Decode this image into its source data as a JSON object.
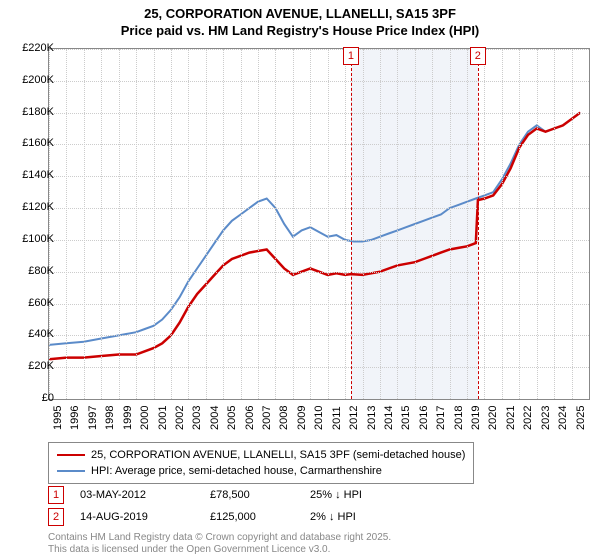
{
  "title_line1": "25, CORPORATION AVENUE, LLANELLI, SA15 3PF",
  "title_line2": "Price paid vs. HM Land Registry's House Price Index (HPI)",
  "chart": {
    "type": "line",
    "ylim": [
      0,
      220000
    ],
    "ytick_step": 20000,
    "yticks": [
      "£0",
      "£20K",
      "£40K",
      "£60K",
      "£80K",
      "£100K",
      "£120K",
      "£140K",
      "£160K",
      "£180K",
      "£200K",
      "£220K"
    ],
    "x_start": 1995,
    "x_end": 2026,
    "xticks": [
      "1995",
      "1996",
      "1997",
      "1998",
      "1999",
      "2000",
      "2001",
      "2002",
      "2003",
      "2004",
      "2005",
      "2006",
      "2007",
      "2008",
      "2009",
      "2010",
      "2011",
      "2012",
      "2013",
      "2014",
      "2015",
      "2016",
      "2017",
      "2018",
      "2019",
      "2020",
      "2021",
      "2022",
      "2023",
      "2024",
      "2025"
    ],
    "grid_color": "#cccccc",
    "background_color": "#ffffff",
    "shaded_region": {
      "start": 2012.33,
      "end": 2019.62,
      "color": "#e8edf5"
    },
    "series": [
      {
        "name": "price_paid",
        "color": "#cc0000",
        "width": 2.5,
        "points": [
          [
            1995,
            25000
          ],
          [
            1996,
            26000
          ],
          [
            1997,
            26000
          ],
          [
            1998,
            27000
          ],
          [
            1999,
            28000
          ],
          [
            2000,
            28000
          ],
          [
            2000.5,
            30000
          ],
          [
            2001,
            32000
          ],
          [
            2001.5,
            35000
          ],
          [
            2002,
            40000
          ],
          [
            2002.5,
            48000
          ],
          [
            2003,
            58000
          ],
          [
            2003.5,
            66000
          ],
          [
            2004,
            72000
          ],
          [
            2004.5,
            78000
          ],
          [
            2005,
            84000
          ],
          [
            2005.5,
            88000
          ],
          [
            2006,
            90000
          ],
          [
            2006.5,
            92000
          ],
          [
            2007,
            93000
          ],
          [
            2007.5,
            94000
          ],
          [
            2008,
            88000
          ],
          [
            2008.5,
            82000
          ],
          [
            2009,
            78000
          ],
          [
            2009.5,
            80000
          ],
          [
            2010,
            82000
          ],
          [
            2010.5,
            80000
          ],
          [
            2011,
            78000
          ],
          [
            2011.5,
            79000
          ],
          [
            2012,
            78000
          ],
          [
            2012.33,
            78500
          ],
          [
            2013,
            78000
          ],
          [
            2013.5,
            79000
          ],
          [
            2014,
            80000
          ],
          [
            2014.5,
            82000
          ],
          [
            2015,
            84000
          ],
          [
            2015.5,
            85000
          ],
          [
            2016,
            86000
          ],
          [
            2016.5,
            88000
          ],
          [
            2017,
            90000
          ],
          [
            2017.5,
            92000
          ],
          [
            2018,
            94000
          ],
          [
            2018.5,
            95000
          ],
          [
            2019,
            96000
          ],
          [
            2019.5,
            98000
          ],
          [
            2019.62,
            125000
          ],
          [
            2020,
            126000
          ],
          [
            2020.5,
            128000
          ],
          [
            2021,
            135000
          ],
          [
            2021.5,
            145000
          ],
          [
            2022,
            158000
          ],
          [
            2022.5,
            166000
          ],
          [
            2023,
            170000
          ],
          [
            2023.5,
            168000
          ],
          [
            2024,
            170000
          ],
          [
            2024.5,
            172000
          ],
          [
            2025,
            176000
          ],
          [
            2025.5,
            180000
          ]
        ]
      },
      {
        "name": "hpi",
        "color": "#5b8bc9",
        "width": 2,
        "points": [
          [
            1995,
            34000
          ],
          [
            1996,
            35000
          ],
          [
            1997,
            36000
          ],
          [
            1998,
            38000
          ],
          [
            1999,
            40000
          ],
          [
            2000,
            42000
          ],
          [
            2000.5,
            44000
          ],
          [
            2001,
            46000
          ],
          [
            2001.5,
            50000
          ],
          [
            2002,
            56000
          ],
          [
            2002.5,
            64000
          ],
          [
            2003,
            74000
          ],
          [
            2003.5,
            82000
          ],
          [
            2004,
            90000
          ],
          [
            2004.5,
            98000
          ],
          [
            2005,
            106000
          ],
          [
            2005.5,
            112000
          ],
          [
            2006,
            116000
          ],
          [
            2006.5,
            120000
          ],
          [
            2007,
            124000
          ],
          [
            2007.5,
            126000
          ],
          [
            2008,
            120000
          ],
          [
            2008.5,
            110000
          ],
          [
            2009,
            102000
          ],
          [
            2009.5,
            106000
          ],
          [
            2010,
            108000
          ],
          [
            2010.5,
            105000
          ],
          [
            2011,
            102000
          ],
          [
            2011.5,
            103000
          ],
          [
            2012,
            100000
          ],
          [
            2012.5,
            99000
          ],
          [
            2013,
            99000
          ],
          [
            2013.5,
            100000
          ],
          [
            2014,
            102000
          ],
          [
            2014.5,
            104000
          ],
          [
            2015,
            106000
          ],
          [
            2015.5,
            108000
          ],
          [
            2016,
            110000
          ],
          [
            2016.5,
            112000
          ],
          [
            2017,
            114000
          ],
          [
            2017.5,
            116000
          ],
          [
            2018,
            120000
          ],
          [
            2018.5,
            122000
          ],
          [
            2019,
            124000
          ],
          [
            2019.5,
            126000
          ],
          [
            2020,
            128000
          ],
          [
            2020.5,
            130000
          ],
          [
            2021,
            138000
          ],
          [
            2021.5,
            148000
          ],
          [
            2022,
            160000
          ],
          [
            2022.5,
            168000
          ],
          [
            2023,
            172000
          ],
          [
            2023.5,
            168000
          ],
          [
            2024,
            170000
          ],
          [
            2024.5,
            172000
          ],
          [
            2025,
            176000
          ],
          [
            2025.5,
            180000
          ]
        ]
      }
    ],
    "markers": [
      {
        "label": "1",
        "x": 2012.33,
        "color": "#cc0000"
      },
      {
        "label": "2",
        "x": 2019.62,
        "color": "#cc0000"
      }
    ]
  },
  "legend": [
    {
      "color": "#cc0000",
      "label": "25, CORPORATION AVENUE, LLANELLI, SA15 3PF (semi-detached house)"
    },
    {
      "color": "#5b8bc9",
      "label": "HPI: Average price, semi-detached house, Carmarthenshire"
    }
  ],
  "sales": [
    {
      "num": "1",
      "color": "#cc0000",
      "date": "03-MAY-2012",
      "price": "£78,500",
      "diff": "25% ↓ HPI"
    },
    {
      "num": "2",
      "color": "#cc0000",
      "date": "14-AUG-2019",
      "price": "£125,000",
      "diff": "2% ↓ HPI"
    }
  ],
  "footer_line1": "Contains HM Land Registry data © Crown copyright and database right 2025.",
  "footer_line2": "This data is licensed under the Open Government Licence v3.0."
}
